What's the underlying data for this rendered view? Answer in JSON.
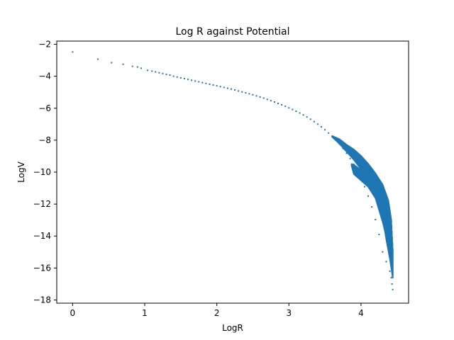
{
  "chart_data": {
    "type": "scatter",
    "title": "Log R against Potential",
    "xlabel": "LogR",
    "ylabel": "LogV",
    "xlim": [
      -0.22,
      4.66
    ],
    "ylim": [
      -18.2,
      -1.8
    ],
    "x_ticks": [
      0,
      1,
      2,
      3,
      4
    ],
    "x_tick_labels": [
      "0",
      "1",
      "2",
      "3",
      "4"
    ],
    "y_ticks": [
      -2,
      -4,
      -6,
      -8,
      -10,
      -12,
      -14,
      -16,
      -18
    ],
    "y_tick_labels": [
      "−2",
      "−4",
      "−6",
      "−8",
      "−10",
      "−12",
      "−14",
      "−16",
      "−18"
    ],
    "grid": false,
    "marker_color": "#1f77b4",
    "series": [
      {
        "points": [
          [
            0.0,
            -2.48
          ],
          [
            0.35,
            -2.93
          ],
          [
            0.54,
            -3.15
          ],
          [
            0.7,
            -3.25
          ],
          [
            0.83,
            -3.38
          ],
          [
            0.9,
            -3.42
          ],
          [
            0.95,
            -3.5
          ],
          [
            1.04,
            -3.63
          ],
          [
            1.1,
            -3.68
          ],
          [
            1.15,
            -3.73
          ],
          [
            1.2,
            -3.78
          ],
          [
            1.25,
            -3.83
          ],
          [
            1.3,
            -3.88
          ],
          [
            1.35,
            -3.93
          ],
          [
            1.4,
            -4.0
          ],
          [
            1.45,
            -4.05
          ],
          [
            1.5,
            -4.1
          ],
          [
            1.55,
            -4.15
          ],
          [
            1.6,
            -4.2
          ],
          [
            1.65,
            -4.25
          ],
          [
            1.7,
            -4.3
          ],
          [
            1.75,
            -4.35
          ],
          [
            1.8,
            -4.4
          ],
          [
            1.85,
            -4.45
          ],
          [
            1.9,
            -4.5
          ],
          [
            1.95,
            -4.55
          ],
          [
            2.0,
            -4.6
          ],
          [
            2.05,
            -4.65
          ],
          [
            2.1,
            -4.7
          ],
          [
            2.15,
            -4.75
          ],
          [
            2.2,
            -4.8
          ],
          [
            2.25,
            -4.86
          ],
          [
            2.3,
            -4.92
          ],
          [
            2.35,
            -4.98
          ],
          [
            2.4,
            -5.04
          ],
          [
            2.45,
            -5.1
          ],
          [
            2.5,
            -5.16
          ],
          [
            2.55,
            -5.23
          ],
          [
            2.6,
            -5.3
          ],
          [
            2.65,
            -5.37
          ],
          [
            2.7,
            -5.45
          ],
          [
            2.75,
            -5.53
          ],
          [
            2.8,
            -5.61
          ],
          [
            2.85,
            -5.7
          ],
          [
            2.9,
            -5.79
          ],
          [
            2.95,
            -5.88
          ],
          [
            3.0,
            -5.98
          ],
          [
            3.05,
            -6.08
          ],
          [
            3.1,
            -6.19
          ],
          [
            3.15,
            -6.3
          ],
          [
            3.2,
            -6.42
          ],
          [
            3.25,
            -6.55
          ],
          [
            3.3,
            -6.69
          ],
          [
            3.35,
            -6.84
          ],
          [
            3.4,
            -7.0
          ],
          [
            3.45,
            -7.17
          ],
          [
            3.5,
            -7.35
          ],
          [
            3.55,
            -7.55
          ],
          [
            3.6,
            -7.76
          ],
          [
            3.65,
            -7.99
          ],
          [
            3.7,
            -8.24
          ],
          [
            3.75,
            -8.52
          ],
          [
            3.8,
            -8.82
          ],
          [
            3.85,
            -9.15
          ],
          [
            3.9,
            -9.52
          ],
          [
            3.95,
            -9.93
          ],
          [
            4.0,
            -10.39
          ],
          [
            4.05,
            -10.91
          ],
          [
            4.1,
            -11.5
          ],
          [
            4.15,
            -12.18
          ],
          [
            4.2,
            -12.97
          ],
          [
            4.25,
            -13.9
          ],
          [
            4.3,
            -14.99
          ],
          [
            4.35,
            -15.6
          ],
          [
            4.4,
            -16.2
          ],
          [
            4.42,
            -16.6
          ],
          [
            4.43,
            -17.0
          ],
          [
            4.44,
            -17.35
          ]
        ],
        "bands": [
          {
            "upper": [
              [
                3.6,
                -7.75
              ],
              [
                3.7,
                -7.95
              ],
              [
                3.8,
                -8.3
              ],
              [
                3.9,
                -8.6
              ],
              [
                4.0,
                -9.0
              ],
              [
                4.1,
                -9.5
              ],
              [
                4.2,
                -10.1
              ],
              [
                4.3,
                -10.8
              ],
              [
                4.38,
                -11.8
              ],
              [
                4.42,
                -13.0
              ],
              [
                4.44,
                -14.8
              ]
            ],
            "lower": [
              [
                3.6,
                -7.78
              ],
              [
                3.7,
                -8.2
              ],
              [
                3.8,
                -8.7
              ],
              [
                3.9,
                -9.2
              ],
              [
                4.0,
                -9.8
              ],
              [
                4.1,
                -10.5
              ],
              [
                4.2,
                -11.4
              ],
              [
                4.3,
                -12.8
              ],
              [
                4.35,
                -14.2
              ],
              [
                4.4,
                -15.4
              ],
              [
                4.44,
                -16.6
              ]
            ]
          },
          {
            "upper": [
              [
                3.87,
                -9.5
              ],
              [
                3.9,
                -9.55
              ],
              [
                4.0,
                -9.9
              ],
              [
                4.1,
                -10.3
              ],
              [
                4.2,
                -11.0
              ],
              [
                4.3,
                -12.3
              ],
              [
                4.35,
                -13.2
              ]
            ],
            "lower": [
              [
                3.87,
                -9.6
              ],
              [
                3.9,
                -10.1
              ],
              [
                4.0,
                -10.5
              ],
              [
                4.1,
                -10.9
              ],
              [
                4.2,
                -11.6
              ],
              [
                4.3,
                -13.1
              ],
              [
                4.35,
                -14.0
              ]
            ]
          }
        ]
      }
    ]
  }
}
